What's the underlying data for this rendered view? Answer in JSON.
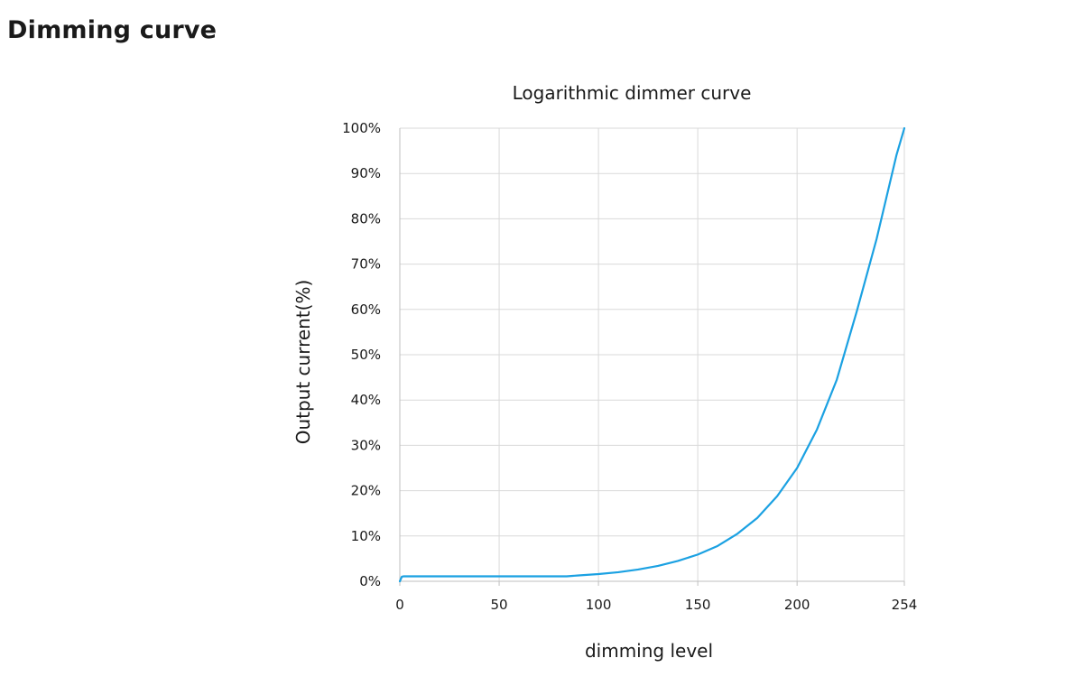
{
  "page": {
    "title": "Dimming curve"
  },
  "colors": {
    "series": "#1ba1e2"
  },
  "chart_data": {
    "type": "line",
    "title": "Logarithmic dimmer curve",
    "xlabel": "dimming level",
    "ylabel": "Output current(%)",
    "xlim": [
      0,
      254
    ],
    "ylim": [
      0,
      100
    ],
    "x_ticks": [
      0,
      50,
      100,
      150,
      200,
      254
    ],
    "y_ticks": [
      0,
      10,
      20,
      30,
      40,
      50,
      60,
      70,
      80,
      90,
      100
    ],
    "y_tick_labels": [
      "0%",
      "10%",
      "20%",
      "30%",
      "40%",
      "50%",
      "60%",
      "70%",
      "80%",
      "90%",
      "100%"
    ],
    "grid": true,
    "series": [
      {
        "x": [
          0,
          1,
          2,
          10,
          30,
          50,
          70,
          84,
          90,
          100,
          110,
          120,
          130,
          140,
          150,
          160,
          170,
          180,
          190,
          200,
          210,
          220,
          230,
          240,
          250,
          254
        ],
        "y": [
          0,
          1,
          1.1,
          1.1,
          1.1,
          1.1,
          1.1,
          1.1,
          1.3,
          1.6,
          2.0,
          2.6,
          3.4,
          4.5,
          5.9,
          7.8,
          10.5,
          14.0,
          18.8,
          25.0,
          33.5,
          44.5,
          59.5,
          75.5,
          94,
          100
        ]
      }
    ]
  }
}
